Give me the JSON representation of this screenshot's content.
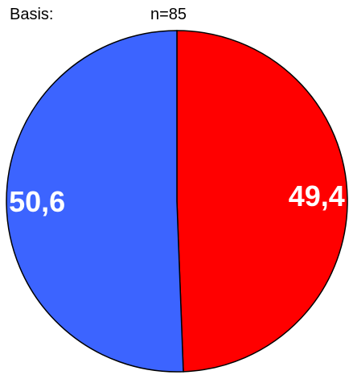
{
  "header": {
    "basis_label": "Basis:",
    "n_label": "n=85"
  },
  "chart_data": {
    "type": "pie",
    "title": "",
    "start_angle_deg": 0,
    "direction": "clockwise",
    "slices": [
      {
        "label": "49,4",
        "value": 49.4,
        "color": "#ff0000"
      },
      {
        "label": "50,6",
        "value": 50.6,
        "color": "#3c64ff"
      }
    ],
    "border_color": "#000000",
    "legend": "none"
  }
}
